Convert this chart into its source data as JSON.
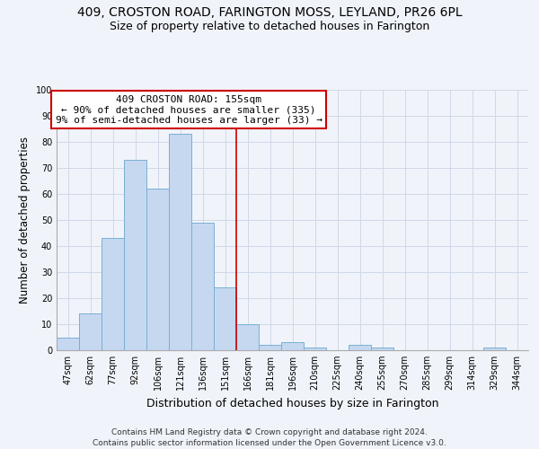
{
  "title1": "409, CROSTON ROAD, FARINGTON MOSS, LEYLAND, PR26 6PL",
  "title2": "Size of property relative to detached houses in Farington",
  "xlabel": "Distribution of detached houses by size in Farington",
  "ylabel": "Number of detached properties",
  "categories": [
    "47sqm",
    "62sqm",
    "77sqm",
    "92sqm",
    "106sqm",
    "121sqm",
    "136sqm",
    "151sqm",
    "166sqm",
    "181sqm",
    "196sqm",
    "210sqm",
    "225sqm",
    "240sqm",
    "255sqm",
    "270sqm",
    "285sqm",
    "299sqm",
    "314sqm",
    "329sqm",
    "344sqm"
  ],
  "values": [
    5,
    14,
    43,
    73,
    62,
    83,
    49,
    24,
    10,
    2,
    3,
    1,
    0,
    2,
    1,
    0,
    0,
    0,
    0,
    1,
    0
  ],
  "bar_color": "#c5d8f0",
  "bar_edge_color": "#7aafd4",
  "vline_after_index": 7,
  "vline_color": "#cc0000",
  "annotation_text": "409 CROSTON ROAD: 155sqm\n← 90% of detached houses are smaller (335)\n9% of semi-detached houses are larger (33) →",
  "annotation_box_color": "#ffffff",
  "annotation_box_edge": "#cc0000",
  "ylim": [
    0,
    100
  ],
  "yticks": [
    0,
    10,
    20,
    30,
    40,
    50,
    60,
    70,
    80,
    90,
    100
  ],
  "bg_color": "#f0f4fa",
  "grid_color": "#d0d8e8",
  "footer1": "Contains HM Land Registry data © Crown copyright and database right 2024.",
  "footer2": "Contains public sector information licensed under the Open Government Licence v3.0.",
  "title1_fontsize": 10,
  "title2_fontsize": 9,
  "tick_fontsize": 7,
  "ylabel_fontsize": 8.5,
  "xlabel_fontsize": 9,
  "annotation_fontsize": 8,
  "footer_fontsize": 6.5
}
